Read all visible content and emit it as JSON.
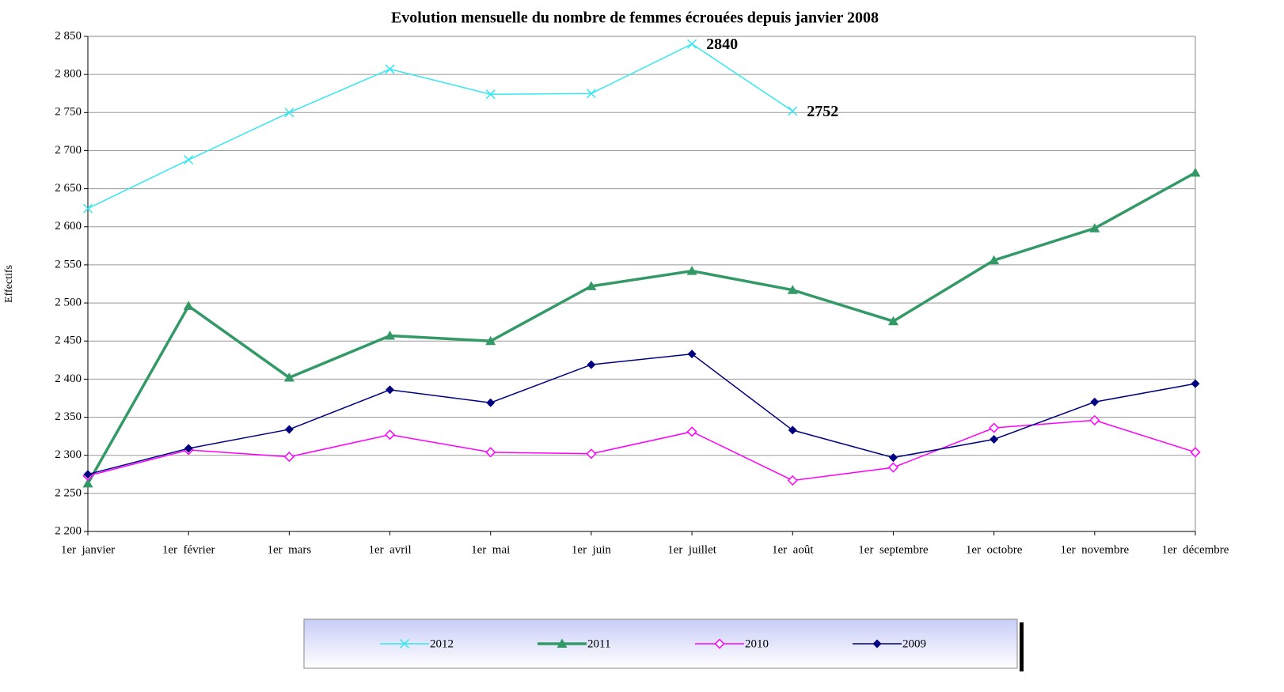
{
  "chart_data": {
    "type": "line",
    "title": "Evolution mensuelle du nombre de femmes écrouées depuis janvier 2008",
    "y_label": "Effectifs",
    "categories": [
      "1er  janvier",
      "1er  février",
      "1er  mars",
      "1er  avril",
      "1er  mai",
      "1er  juin",
      "1er  juillet",
      "1er  août",
      "1er  septembre",
      "1er  octobre",
      "1er  novembre",
      "1er  décembre"
    ],
    "ylim": [
      2200,
      2850
    ],
    "yticks": [
      {
        "value": 2200,
        "label": "2 200"
      },
      {
        "value": 2250,
        "label": "2 250"
      },
      {
        "value": 2300,
        "label": "2 300"
      },
      {
        "value": 2350,
        "label": "2 350"
      },
      {
        "value": 2400,
        "label": "2 400"
      },
      {
        "value": 2450,
        "label": "2 450"
      },
      {
        "value": 2500,
        "label": "2 500"
      },
      {
        "value": 2550,
        "label": "2 550"
      },
      {
        "value": 2600,
        "label": "2 600"
      },
      {
        "value": 2650,
        "label": "2 650"
      },
      {
        "value": 2700,
        "label": "2 700"
      },
      {
        "value": 2750,
        "label": "2 750"
      },
      {
        "value": 2800,
        "label": "2 800"
      },
      {
        "value": 2850,
        "label": "2 850"
      }
    ],
    "grid": true,
    "legend": "bottom",
    "series": [
      {
        "name": "2012",
        "color": "#33e8f0",
        "marker": "x",
        "values": [
          2624,
          2688,
          2750,
          2807,
          2774,
          2775,
          2840,
          2752,
          null,
          null,
          null,
          null
        ],
        "value_labels": [
          null,
          null,
          null,
          null,
          null,
          null,
          "2840",
          "2752",
          null,
          null,
          null,
          null
        ]
      },
      {
        "name": "2011",
        "color": "#339966",
        "marker": "triangle",
        "values": [
          2263,
          2496,
          2402,
          2457,
          2450,
          2522,
          2542,
          2517,
          2476,
          2556,
          2598,
          2671
        ]
      },
      {
        "name": "2010",
        "color": "#ff00ff",
        "marker": "diamond-open",
        "values": [
          2273,
          2307,
          2298,
          2327,
          2304,
          2302,
          2331,
          2267,
          2284,
          2336,
          2346,
          2304
        ]
      },
      {
        "name": "2009",
        "color": "#000080",
        "marker": "diamond",
        "values": [
          2275,
          2309,
          2334,
          2386,
          2369,
          2419,
          2433,
          2333,
          2297,
          2321,
          2370,
          2394
        ]
      }
    ]
  }
}
